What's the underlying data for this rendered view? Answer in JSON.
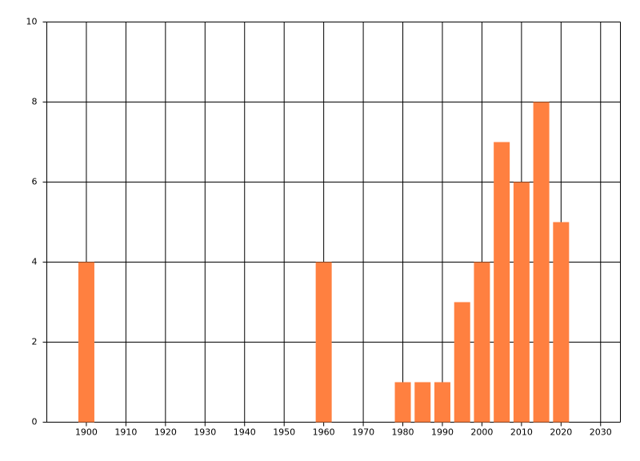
{
  "chart_data": {
    "type": "bar",
    "x": [
      1900,
      1960,
      1980,
      1985,
      1990,
      1995,
      2000,
      2005,
      2010,
      2015,
      2020
    ],
    "values": [
      4,
      4,
      1,
      1,
      1,
      3,
      4,
      7,
      6,
      8,
      5
    ],
    "color": "#ff8040",
    "xlim": [
      1890,
      2035
    ],
    "xticks": [
      1900,
      1910,
      1920,
      1930,
      1940,
      1950,
      1960,
      1970,
      1980,
      1990,
      2000,
      2010,
      2020,
      2030
    ],
    "ylim": [
      0,
      10
    ],
    "yticks": [
      0,
      2,
      4,
      6,
      8,
      10
    ],
    "grid": true
  }
}
